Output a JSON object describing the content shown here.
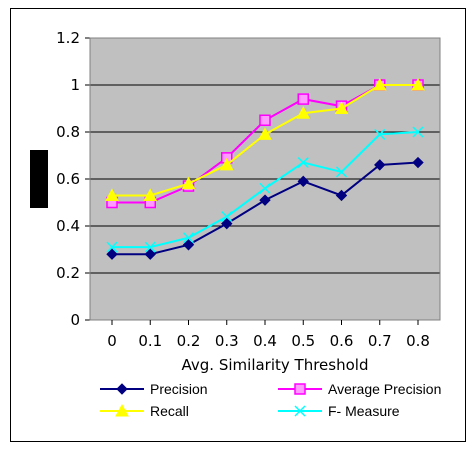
{
  "chart_data": {
    "type": "line",
    "title": "",
    "xlabel": "Avg. Similarity Threshold",
    "ylabel": "",
    "x": [
      "0",
      "0.1",
      "0.2",
      "0.3",
      "0.4",
      "0.5",
      "0.6",
      "0.7",
      "0.8"
    ],
    "ylim": [
      0,
      1.2
    ],
    "yticks": [
      "0",
      "0.2",
      "0.4",
      "0.6",
      "0.8",
      "1",
      "1.2"
    ],
    "grid": "horizontal",
    "plot_background": "#c0c0c0",
    "legend_position": "bottom",
    "series": [
      {
        "name": "Precision",
        "color": "#000080",
        "marker": "diamond",
        "values": [
          0.28,
          0.28,
          0.32,
          0.41,
          0.51,
          0.59,
          0.53,
          0.66,
          0.67
        ]
      },
      {
        "name": "Average Precision",
        "color": "#ff00ff",
        "marker": "square",
        "values": [
          0.5,
          0.5,
          0.57,
          0.69,
          0.85,
          0.94,
          0.91,
          1.0,
          1.0
        ]
      },
      {
        "name": "Recall",
        "color": "#ffff00",
        "marker": "triangle",
        "values": [
          0.53,
          0.53,
          0.58,
          0.66,
          0.79,
          0.88,
          0.9,
          1.0,
          1.0
        ]
      },
      {
        "name": "F- Measure",
        "color": "#00ffff",
        "marker": "x",
        "values": [
          0.31,
          0.31,
          0.35,
          0.44,
          0.56,
          0.67,
          0.63,
          0.79,
          0.8
        ]
      }
    ]
  }
}
